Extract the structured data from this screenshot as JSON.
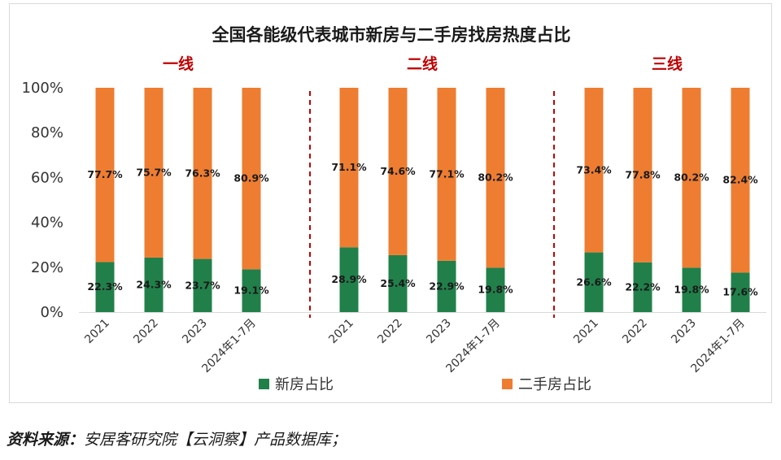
{
  "source": {
    "label": "资料来源：",
    "text": "安居客研究院【云洞察】产品数据库；"
  },
  "colors": {
    "new": "#21804a",
    "second": "#ee7d31",
    "divider": "#c00000",
    "group_label": "#c00000"
  },
  "chart_data": {
    "type": "bar",
    "stacked": true,
    "normalized": true,
    "title": "全国各能级代表城市新房与二手房找房热度占比",
    "ylim": [
      0,
      100
    ],
    "yticks": [
      "0%",
      "20%",
      "40%",
      "60%",
      "80%",
      "100%"
    ],
    "grid": false,
    "legend": "bottom",
    "groups": [
      {
        "label": "一线",
        "categories": [
          "2021",
          "2022",
          "2023",
          "2024年1-7月"
        ],
        "new": [
          22.3,
          24.3,
          23.7,
          19.1
        ],
        "second": [
          77.7,
          75.7,
          76.3,
          80.9
        ],
        "new_labels": [
          "22.3%",
          "24.3%",
          "23.7%",
          "19.1%"
        ],
        "second_labels": [
          "77.7%",
          "75.7%",
          "76.3%",
          "80.9%"
        ]
      },
      {
        "label": "二线",
        "categories": [
          "2021",
          "2022",
          "2023",
          "2024年1-7月"
        ],
        "new": [
          28.9,
          25.4,
          22.9,
          19.8
        ],
        "second": [
          71.1,
          74.6,
          77.1,
          80.2
        ],
        "new_labels": [
          "28.9%",
          "25.4%",
          "22.9%",
          "19.8%"
        ],
        "second_labels": [
          "71.1%",
          "74.6%",
          "77.1%",
          "80.2%"
        ]
      },
      {
        "label": "三线",
        "categories": [
          "2021",
          "2022",
          "2023",
          "2024年1-7月"
        ],
        "new": [
          26.6,
          22.2,
          19.8,
          17.6
        ],
        "second": [
          73.4,
          77.8,
          80.2,
          82.4
        ],
        "new_labels": [
          "26.6%",
          "22.2%",
          "19.8%",
          "17.6%"
        ],
        "second_labels": [
          "73.4%",
          "77.8%",
          "80.2%",
          "82.4%"
        ]
      }
    ],
    "series": [
      {
        "name": "新房占比"
      },
      {
        "name": "二手房占比"
      }
    ]
  }
}
